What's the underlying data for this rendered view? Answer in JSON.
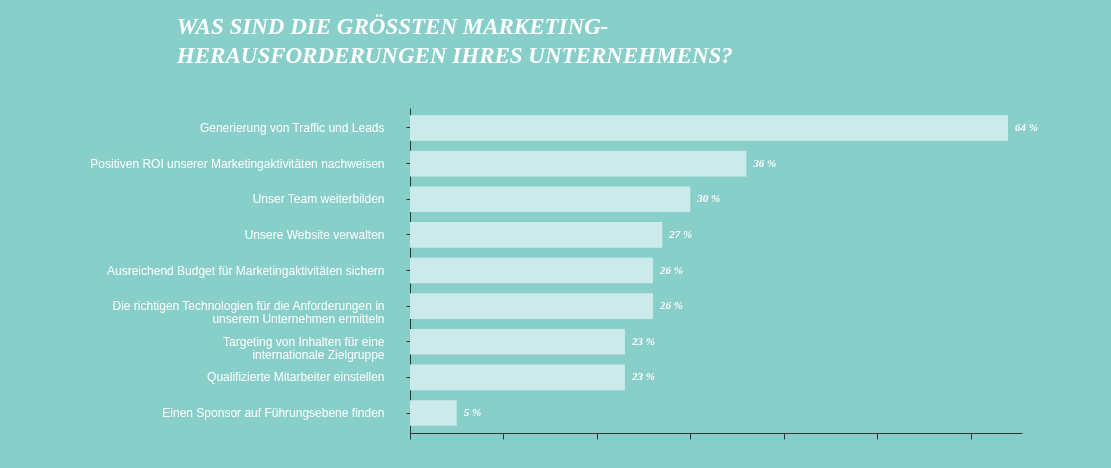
{
  "chart_data": {
    "type": "bar",
    "orientation": "horizontal",
    "title": "WAS SIND DIE GRÖSSTEN MARKETING-\nHERAUSFORDERUNGEN IHRES UNTERNEHMENS?",
    "categories": [
      "Generierung von Traffic und Leads",
      "Positiven ROI unserer Marketingaktivitäten nachweisen",
      "Unser Team weiterbilden",
      "Unsere Website verwalten",
      "Ausreichend Budget für Marketingaktivitäten sichern",
      "Die richtigen Technologien für die Anforderungen in\nunserem Unternehmen ermitteln",
      "Targeting von Inhalten für eine\ninternationale Zielgruppe",
      "Qualifizierte Mitarbeiter einstellen",
      "Einen Sponsor auf Führungsebene finden"
    ],
    "values": [
      64,
      36,
      30,
      27,
      26,
      26,
      23,
      23,
      5
    ],
    "value_labels": [
      "64 %",
      "36 %",
      "30 %",
      "27 %",
      "26 %",
      "26 %",
      "23 %",
      "23 %",
      "5 %"
    ],
    "color": "#cdeaea",
    "xlim": [
      0,
      65.5
    ],
    "xticks": [
      {
        "value": 0,
        "label": null
      },
      {
        "value": 10,
        "label": null
      },
      {
        "value": 20,
        "label": null
      },
      {
        "value": 30,
        "label": null
      },
      {
        "value": 40,
        "label": null
      },
      {
        "value": 50,
        "label": null
      },
      {
        "value": 60,
        "label": null
      }
    ],
    "tick_labels": "y",
    "grid": false
  }
}
